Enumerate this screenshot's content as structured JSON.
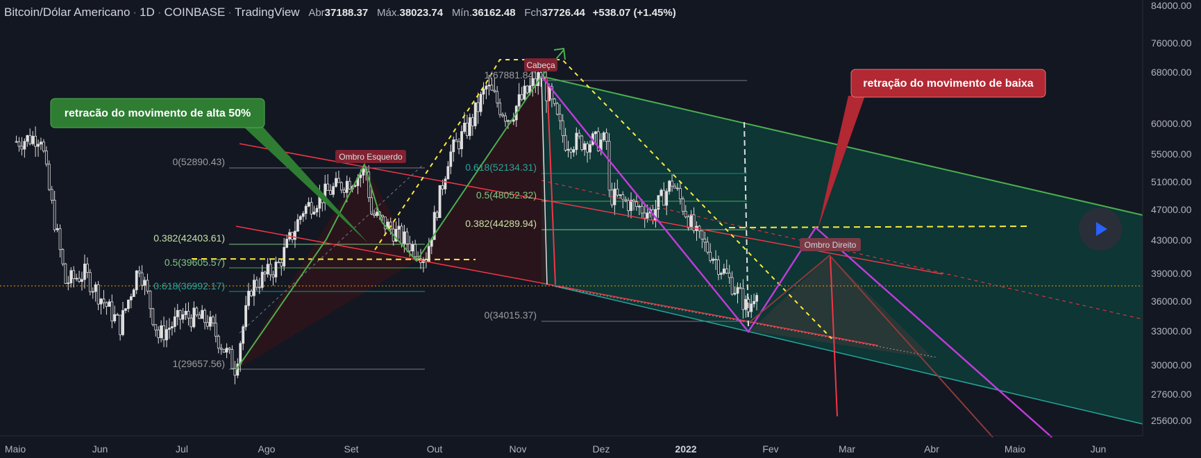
{
  "header": {
    "symbol": "Bitcoin/Dólar Americano",
    "interval": "1D",
    "exchange": "COINBASE",
    "source": "TradingView",
    "open_label": "Abr",
    "open": "37188.37",
    "high_label": "Máx.",
    "high": "38023.74",
    "low_label": "Mín.",
    "low": "36162.48",
    "close_label": "Fch",
    "close": "37726.44",
    "change": "+538.07 (+1.45%)"
  },
  "colors": {
    "background": "#131722",
    "candle": "#e0e0e0",
    "green_annotation": "#4caf50",
    "red_annotation": "#f23645",
    "yellow_dashed": "#ffeb3b",
    "purple_path": "#c03bd8",
    "channel_fill": "#0b3b37"
  },
  "chart_data": {
    "type": "candlestick",
    "y_axis": {
      "scale": "log",
      "ticks": [
        "84000.00",
        "76000.00",
        "68000.00",
        "60000.00",
        "55000.00",
        "51000.00",
        "47000.00",
        "43000.00",
        "39000.00",
        "36000.00",
        "33000.00",
        "30000.00",
        "27600.00",
        "25600.00"
      ]
    },
    "x_axis": {
      "ticks": [
        "Maio",
        "Jun",
        "Jul",
        "Ago",
        "Set",
        "Out",
        "Nov",
        "Dez",
        "2022",
        "Fev",
        "Mar",
        "Abr",
        "Maio",
        "Jun"
      ]
    },
    "price_series": [
      [
        "2021-05-01",
        57000
      ],
      [
        "2021-05-10",
        58000
      ],
      [
        "2021-05-12",
        52000
      ],
      [
        "2021-05-19",
        38000
      ],
      [
        "2021-05-26",
        39000
      ],
      [
        "2021-06-08",
        33500
      ],
      [
        "2021-06-15",
        40000
      ],
      [
        "2021-06-22",
        32500
      ],
      [
        "2021-07-01",
        34500
      ],
      [
        "2021-07-10",
        34000
      ],
      [
        "2021-07-20",
        29800
      ],
      [
        "2021-07-26",
        37500
      ],
      [
        "2021-08-05",
        40000
      ],
      [
        "2021-08-14",
        47000
      ],
      [
        "2021-08-23",
        49500
      ],
      [
        "2021-09-06",
        52500
      ],
      [
        "2021-09-08",
        46500
      ],
      [
        "2021-09-20",
        43000
      ],
      [
        "2021-09-28",
        41000
      ],
      [
        "2021-10-06",
        54500
      ],
      [
        "2021-10-15",
        60500
      ],
      [
        "2021-10-20",
        65500
      ],
      [
        "2021-10-28",
        61000
      ],
      [
        "2021-11-09",
        67500
      ],
      [
        "2021-11-18",
        57000
      ],
      [
        "2021-12-03",
        57000
      ],
      [
        "2021-12-04",
        49000
      ],
      [
        "2021-12-20",
        46500
      ],
      [
        "2021-12-27",
        51000
      ],
      [
        "2022-01-05",
        43500
      ],
      [
        "2022-01-10",
        41500
      ],
      [
        "2022-01-21",
        36500
      ],
      [
        "2022-01-24",
        35000
      ],
      [
        "2022-01-27",
        37700
      ]
    ],
    "fib_left": {
      "levels": [
        {
          "ratio": "0",
          "price": "52890.43"
        },
        {
          "ratio": "0.382",
          "price": "42403.61"
        },
        {
          "ratio": "0.5",
          "price": "39605.57"
        },
        {
          "ratio": "0.618",
          "price": "36992.17"
        },
        {
          "ratio": "1",
          "price": "29657.56"
        }
      ]
    },
    "fib_right": {
      "levels": [
        {
          "ratio": "1",
          "price": "67881.84"
        },
        {
          "ratio": "0.618",
          "price": "52134.31"
        },
        {
          "ratio": "0.5",
          "price": "48052.32"
        },
        {
          "ratio": "0.382",
          "price": "44289.94"
        },
        {
          "ratio": "0",
          "price": "34015.37"
        }
      ]
    },
    "labels": {
      "left_shoulder": "Ombro Esquerdo",
      "head": "Cabeça",
      "right_shoulder": "Ombro Direito"
    },
    "callouts": {
      "green": "retracão  do movimento de alta 50%",
      "red": "retração do movimento de baixa"
    }
  }
}
